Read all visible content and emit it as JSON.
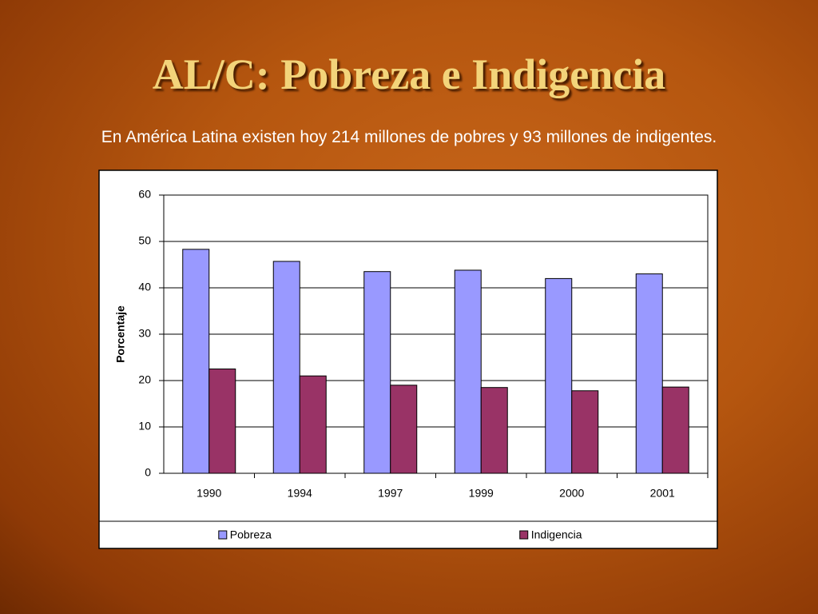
{
  "slide": {
    "title": "AL/C: Pobreza e Indigencia",
    "subtitle": "En América Latina existen hoy 214 millones de pobres y 93 millones de indigentes."
  },
  "chart_data": {
    "type": "bar",
    "categories": [
      "1990",
      "1994",
      "1997",
      "1999",
      "2000",
      "2001"
    ],
    "series": [
      {
        "name": "Pobreza",
        "color": "#9999ff",
        "values": [
          48.3,
          45.7,
          43.5,
          43.8,
          42.0,
          43.0
        ]
      },
      {
        "name": "Indigencia",
        "color": "#993366",
        "values": [
          22.5,
          21.0,
          19.0,
          18.5,
          17.8,
          18.6
        ]
      }
    ],
    "ylabel": "Porcentaje",
    "ylim": [
      0,
      60
    ],
    "yticks": [
      0,
      10,
      20,
      30,
      40,
      50,
      60
    ],
    "grid": true,
    "legend": "bottom"
  }
}
